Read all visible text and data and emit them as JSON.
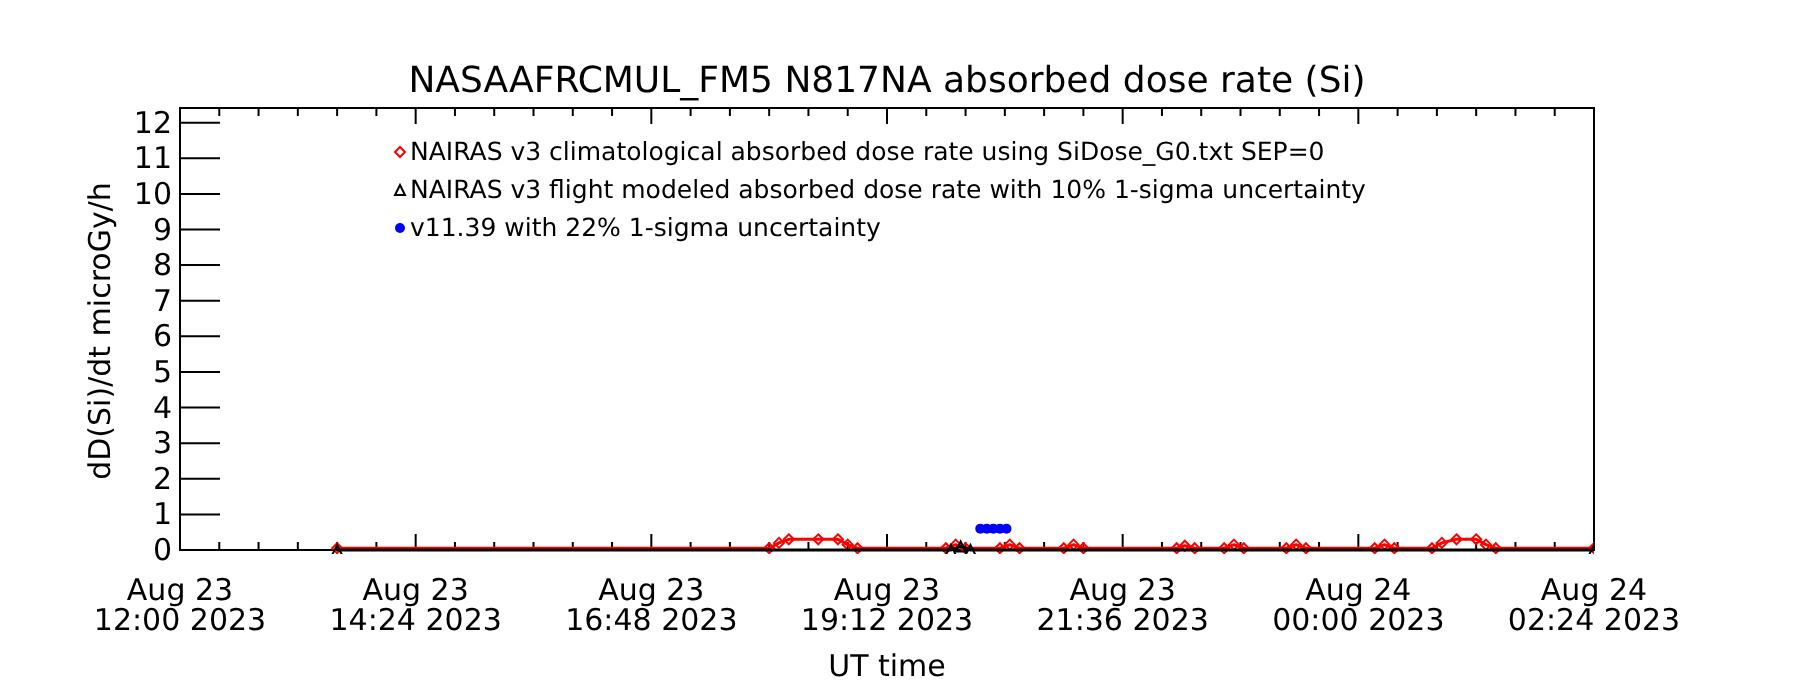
{
  "chart_data": {
    "type": "line",
    "title": "NASAAFRCMUL_FM5   N817NA absorbed dose rate (Si)",
    "xlabel": "UT time",
    "ylabel": "dD(Si)/dt microGy/h",
    "xlim": [
      "2023-08-23T12:00",
      "2023-08-24T02:24"
    ],
    "xticks": [
      {
        "value": "2023-08-23T12:00",
        "label": "Aug 23\n12:00 2023"
      },
      {
        "value": "2023-08-23T12:24",
        "label": null
      },
      {
        "value": "2023-08-23T12:48",
        "label": null
      },
      {
        "value": "2023-08-23T13:12",
        "label": null
      },
      {
        "value": "2023-08-23T13:36",
        "label": null
      },
      {
        "value": "2023-08-23T14:00",
        "label": null
      },
      {
        "value": "2023-08-23T14:24",
        "label": "Aug 23\n14:24 2023"
      },
      {
        "value": "2023-08-23T14:48",
        "label": null
      },
      {
        "value": "2023-08-23T15:12",
        "label": null
      },
      {
        "value": "2023-08-23T15:36",
        "label": null
      },
      {
        "value": "2023-08-23T16:00",
        "label": null
      },
      {
        "value": "2023-08-23T16:24",
        "label": null
      },
      {
        "value": "2023-08-23T16:48",
        "label": "Aug 23\n16:48 2023"
      },
      {
        "value": "2023-08-23T17:12",
        "label": null
      },
      {
        "value": "2023-08-23T17:36",
        "label": null
      },
      {
        "value": "2023-08-23T18:00",
        "label": null
      },
      {
        "value": "2023-08-23T18:24",
        "label": null
      },
      {
        "value": "2023-08-23T18:48",
        "label": null
      },
      {
        "value": "2023-08-23T19:12",
        "label": "Aug 23\n19:12 2023"
      },
      {
        "value": "2023-08-23T19:36",
        "label": null
      },
      {
        "value": "2023-08-23T20:00",
        "label": null
      },
      {
        "value": "2023-08-23T20:24",
        "label": null
      },
      {
        "value": "2023-08-23T20:48",
        "label": null
      },
      {
        "value": "2023-08-23T21:12",
        "label": null
      },
      {
        "value": "2023-08-23T21:36",
        "label": "Aug 23\n21:36 2023"
      },
      {
        "value": "2023-08-23T22:00",
        "label": null
      },
      {
        "value": "2023-08-23T22:24",
        "label": null
      },
      {
        "value": "2023-08-23T22:48",
        "label": null
      },
      {
        "value": "2023-08-23T23:12",
        "label": null
      },
      {
        "value": "2023-08-23T23:36",
        "label": null
      },
      {
        "value": "2023-08-24T00:00",
        "label": "Aug 24\n00:00 2023"
      },
      {
        "value": "2023-08-24T00:24",
        "label": null
      },
      {
        "value": "2023-08-24T00:48",
        "label": null
      },
      {
        "value": "2023-08-24T01:12",
        "label": null
      },
      {
        "value": "2023-08-24T01:36",
        "label": null
      },
      {
        "value": "2023-08-24T02:00",
        "label": null
      },
      {
        "value": "2023-08-24T02:24",
        "label": "Aug 24\n02:24 2023"
      }
    ],
    "ylim": [
      0,
      12.3
    ],
    "yticks": [
      0,
      1,
      2,
      3,
      4,
      5,
      6,
      7,
      8,
      9,
      10,
      11,
      12
    ],
    "legend": "top",
    "line_style": "solid",
    "series": [
      {
        "name": "NAIRAS v3 climatological absorbed dose rate using SiDose_G0.txt SEP=0",
        "color": "#ff0000",
        "marker": "diamond",
        "x": [
          "2023-08-23T13:36",
          "2023-08-23T18:00",
          "2023-08-23T18:06",
          "2023-08-23T18:12",
          "2023-08-23T18:30",
          "2023-08-23T18:42",
          "2023-08-23T18:48",
          "2023-08-23T18:54",
          "2023-08-23T19:48",
          "2023-08-23T19:54",
          "2023-08-23T20:00",
          "2023-08-23T20:21",
          "2023-08-23T20:27",
          "2023-08-23T20:33",
          "2023-08-23T21:00",
          "2023-08-23T21:06",
          "2023-08-23T21:12",
          "2023-08-23T22:09",
          "2023-08-23T22:14",
          "2023-08-23T22:20",
          "2023-08-23T22:38",
          "2023-08-23T22:44",
          "2023-08-23T22:50",
          "2023-08-23T23:16",
          "2023-08-23T23:22",
          "2023-08-23T23:28",
          "2023-08-24T00:10",
          "2023-08-24T00:16",
          "2023-08-24T00:22",
          "2023-08-24T00:45",
          "2023-08-24T00:51",
          "2023-08-24T01:00",
          "2023-08-24T01:12",
          "2023-08-24T01:18",
          "2023-08-24T01:24",
          "2023-08-24T02:24"
        ],
        "values": [
          0.05,
          0.05,
          0.2,
          0.3,
          0.3,
          0.3,
          0.15,
          0.05,
          0.05,
          0.15,
          0.05,
          0.05,
          0.15,
          0.05,
          0.05,
          0.15,
          0.05,
          0.05,
          0.12,
          0.05,
          0.05,
          0.15,
          0.05,
          0.05,
          0.15,
          0.05,
          0.05,
          0.15,
          0.05,
          0.05,
          0.2,
          0.3,
          0.3,
          0.15,
          0.05,
          0.05
        ]
      },
      {
        "name": "NAIRAS v3 flight modeled absorbed dose rate with 10% 1-sigma uncertainty",
        "color": "#000000",
        "marker": "triangle",
        "x": [
          "2023-08-23T13:36",
          "2023-08-23T19:51",
          "2023-08-23T19:57",
          "2023-08-23T20:03",
          "2023-08-24T02:24"
        ],
        "values": [
          0,
          0,
          0.1,
          0,
          0
        ]
      },
      {
        "name": "v11.39 with 22% 1-sigma uncertainty",
        "type": "scatter",
        "color": "#0000ff",
        "marker": "circle",
        "x": [
          "2023-08-23T20:09",
          "2023-08-23T20:13",
          "2023-08-23T20:17",
          "2023-08-23T20:21",
          "2023-08-23T20:25"
        ],
        "values": [
          0.6,
          0.6,
          0.6,
          0.6,
          0.6
        ]
      }
    ]
  }
}
